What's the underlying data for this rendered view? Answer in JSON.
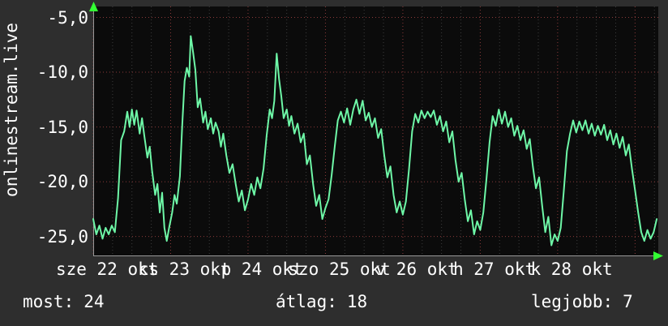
{
  "watermark": "onlinestream.live",
  "stats": {
    "now": {
      "label": "most:",
      "value": "24"
    },
    "avg": {
      "label": "átlag:",
      "value": "18"
    },
    "best": {
      "label": "legjobb:",
      "value": "7"
    }
  },
  "colors": {
    "line": "#6ef7a7",
    "arrow": "#33ff33",
    "grid_major": "#8b3a3a",
    "grid_minor": "#3d3d3d",
    "axis": "#999999",
    "plot_bg": "#0b0b0b",
    "page_bg": "#2e2e2e",
    "text": "#ffffff"
  },
  "y_axis": {
    "ticks": [
      {
        "v": -5,
        "label": "-5,0"
      },
      {
        "v": -10,
        "label": "-10,0"
      },
      {
        "v": -15,
        "label": "-15,0"
      },
      {
        "v": -20,
        "label": "-20,0"
      },
      {
        "v": -25,
        "label": "-25,0"
      }
    ]
  },
  "x_axis": {
    "labels": [
      {
        "pos": 0.18,
        "text": "sze 22 okt"
      },
      {
        "pos": 1.18,
        "text": "cs 23 okt"
      },
      {
        "pos": 2.18,
        "text": "p 24 okt"
      },
      {
        "pos": 3.18,
        "text": "szo 25 okt"
      },
      {
        "pos": 4.18,
        "text": "v 26 okt"
      },
      {
        "pos": 5.18,
        "text": "h 27 okt"
      },
      {
        "pos": 6.18,
        "text": "k 28 okt"
      }
    ],
    "major": [
      0,
      1,
      2,
      3,
      4,
      5,
      6,
      7
    ],
    "minor_step": 0.25
  },
  "chart_data": {
    "type": "line",
    "title": "onlinestream.live",
    "xlabel": "",
    "ylabel": "",
    "x_tick_labels": [
      "sze 22 okt",
      "cs 23 okt",
      "p 24 okt",
      "szo 25 okt",
      "v 26 okt",
      "h 27 okt",
      "k 28 okt"
    ],
    "y_tick_labels": [
      "-5,0",
      "-10,0",
      "-15,0",
      "-20,0",
      "-25,0"
    ],
    "xlim": [
      0,
      7.3
    ],
    "ylim": [
      -26.8,
      -4
    ],
    "grid": "dotted",
    "legend": "none",
    "summary": {
      "most": 24,
      "atlag": 18,
      "legjobb": 7
    },
    "series": [
      {
        "name": "onlinestream.live",
        "color": "#6ef7a7",
        "points": [
          [
            0,
            -23.4
          ],
          [
            0.04,
            -24.8
          ],
          [
            0.08,
            -24
          ],
          [
            0.12,
            -25.2
          ],
          [
            0.16,
            -24.2
          ],
          [
            0.2,
            -24.8
          ],
          [
            0.24,
            -24
          ],
          [
            0.28,
            -24.6
          ],
          [
            0.32,
            -21.5
          ],
          [
            0.36,
            -16.2
          ],
          [
            0.4,
            -15.4
          ],
          [
            0.44,
            -13.6
          ],
          [
            0.47,
            -15
          ],
          [
            0.5,
            -13.4
          ],
          [
            0.53,
            -14.8
          ],
          [
            0.56,
            -13.5
          ],
          [
            0.6,
            -15.6
          ],
          [
            0.63,
            -14.2
          ],
          [
            0.66,
            -15.8
          ],
          [
            0.7,
            -17.8
          ],
          [
            0.73,
            -16.8
          ],
          [
            0.76,
            -19
          ],
          [
            0.8,
            -21.2
          ],
          [
            0.83,
            -20.2
          ],
          [
            0.86,
            -22.8
          ],
          [
            0.89,
            -21
          ],
          [
            0.92,
            -24.2
          ],
          [
            0.95,
            -25.4
          ],
          [
            0.98,
            -24.2
          ],
          [
            1.02,
            -22.8
          ],
          [
            1.05,
            -21.2
          ],
          [
            1.08,
            -22
          ],
          [
            1.12,
            -19.5
          ],
          [
            1.15,
            -14.8
          ],
          [
            1.18,
            -10.8
          ],
          [
            1.21,
            -9.6
          ],
          [
            1.24,
            -10.4
          ],
          [
            1.26,
            -6.7
          ],
          [
            1.29,
            -8.2
          ],
          [
            1.32,
            -9.8
          ],
          [
            1.35,
            -13.2
          ],
          [
            1.38,
            -12.4
          ],
          [
            1.42,
            -14.6
          ],
          [
            1.45,
            -13.6
          ],
          [
            1.48,
            -15.2
          ],
          [
            1.52,
            -14.2
          ],
          [
            1.55,
            -15.6
          ],
          [
            1.58,
            -14.6
          ],
          [
            1.62,
            -15.4
          ],
          [
            1.65,
            -16.8
          ],
          [
            1.68,
            -15.6
          ],
          [
            1.72,
            -17.6
          ],
          [
            1.76,
            -19.2
          ],
          [
            1.8,
            -18.4
          ],
          [
            1.84,
            -20.2
          ],
          [
            1.88,
            -21.8
          ],
          [
            1.92,
            -20.8
          ],
          [
            1.96,
            -22.6
          ],
          [
            2,
            -21.6
          ],
          [
            2.04,
            -20.2
          ],
          [
            2.08,
            -21.2
          ],
          [
            2.12,
            -19.6
          ],
          [
            2.16,
            -20.6
          ],
          [
            2.2,
            -18.8
          ],
          [
            2.24,
            -15.8
          ],
          [
            2.28,
            -13.4
          ],
          [
            2.31,
            -14.2
          ],
          [
            2.34,
            -12.6
          ],
          [
            2.37,
            -8.3
          ],
          [
            2.4,
            -10.6
          ],
          [
            2.43,
            -12.2
          ],
          [
            2.46,
            -14.2
          ],
          [
            2.5,
            -13.4
          ],
          [
            2.53,
            -14.9
          ],
          [
            2.56,
            -14
          ],
          [
            2.6,
            -15.6
          ],
          [
            2.64,
            -14.7
          ],
          [
            2.68,
            -16.4
          ],
          [
            2.72,
            -15.6
          ],
          [
            2.76,
            -18.4
          ],
          [
            2.8,
            -17.6
          ],
          [
            2.84,
            -20.2
          ],
          [
            2.88,
            -22.2
          ],
          [
            2.92,
            -21.2
          ],
          [
            2.96,
            -23.4
          ],
          [
            3,
            -22.4
          ],
          [
            3.04,
            -21.6
          ],
          [
            3.08,
            -19.4
          ],
          [
            3.12,
            -16.8
          ],
          [
            3.16,
            -14.4
          ],
          [
            3.2,
            -13.6
          ],
          [
            3.24,
            -14.6
          ],
          [
            3.28,
            -13.3
          ],
          [
            3.32,
            -14.8
          ],
          [
            3.36,
            -13.4
          ],
          [
            3.4,
            -12.5
          ],
          [
            3.44,
            -13.8
          ],
          [
            3.48,
            -12.6
          ],
          [
            3.52,
            -14.4
          ],
          [
            3.56,
            -13.7
          ],
          [
            3.6,
            -15
          ],
          [
            3.64,
            -14.2
          ],
          [
            3.68,
            -16
          ],
          [
            3.72,
            -15.2
          ],
          [
            3.76,
            -17.6
          ],
          [
            3.8,
            -19.6
          ],
          [
            3.84,
            -18.6
          ],
          [
            3.88,
            -21.2
          ],
          [
            3.92,
            -22.8
          ],
          [
            3.96,
            -21.8
          ],
          [
            4,
            -23
          ],
          [
            4.04,
            -21.8
          ],
          [
            4.08,
            -18.8
          ],
          [
            4.12,
            -15.4
          ],
          [
            4.16,
            -13.8
          ],
          [
            4.2,
            -14.6
          ],
          [
            4.24,
            -13.5
          ],
          [
            4.28,
            -14.2
          ],
          [
            4.32,
            -13.6
          ],
          [
            4.36,
            -14.1
          ],
          [
            4.4,
            -13.5
          ],
          [
            4.44,
            -14.8
          ],
          [
            4.48,
            -14
          ],
          [
            4.52,
            -15.4
          ],
          [
            4.56,
            -14.5
          ],
          [
            4.6,
            -16.4
          ],
          [
            4.64,
            -15.4
          ],
          [
            4.68,
            -18
          ],
          [
            4.72,
            -20
          ],
          [
            4.76,
            -19.2
          ],
          [
            4.8,
            -21.6
          ],
          [
            4.84,
            -23.6
          ],
          [
            4.88,
            -22.6
          ],
          [
            4.92,
            -24.8
          ],
          [
            4.96,
            -23.6
          ],
          [
            5,
            -24.4
          ],
          [
            5.04,
            -22.8
          ],
          [
            5.08,
            -19.8
          ],
          [
            5.12,
            -16.4
          ],
          [
            5.16,
            -14
          ],
          [
            5.2,
            -14.9
          ],
          [
            5.24,
            -13.4
          ],
          [
            5.28,
            -14.7
          ],
          [
            5.32,
            -13.6
          ],
          [
            5.36,
            -15
          ],
          [
            5.4,
            -14.2
          ],
          [
            5.44,
            -15.8
          ],
          [
            5.48,
            -14.9
          ],
          [
            5.52,
            -16.2
          ],
          [
            5.56,
            -15.3
          ],
          [
            5.6,
            -17
          ],
          [
            5.64,
            -16.1
          ],
          [
            5.68,
            -18.6
          ],
          [
            5.72,
            -20.6
          ],
          [
            5.76,
            -19.6
          ],
          [
            5.8,
            -22.2
          ],
          [
            5.84,
            -24.6
          ],
          [
            5.88,
            -23.2
          ],
          [
            5.92,
            -25.8
          ],
          [
            5.96,
            -24.8
          ],
          [
            6,
            -25.4
          ],
          [
            6.04,
            -24.2
          ],
          [
            6.08,
            -20.8
          ],
          [
            6.12,
            -17.2
          ],
          [
            6.16,
            -15.6
          ],
          [
            6.2,
            -14.4
          ],
          [
            6.24,
            -15.5
          ],
          [
            6.28,
            -14.5
          ],
          [
            6.32,
            -15.3
          ],
          [
            6.36,
            -14.4
          ],
          [
            6.4,
            -15.6
          ],
          [
            6.44,
            -14.7
          ],
          [
            6.48,
            -15.8
          ],
          [
            6.52,
            -14.9
          ],
          [
            6.56,
            -15.7
          ],
          [
            6.6,
            -14.8
          ],
          [
            6.64,
            -16.2
          ],
          [
            6.68,
            -15.3
          ],
          [
            6.72,
            -16.6
          ],
          [
            6.76,
            -15.6
          ],
          [
            6.8,
            -16.9
          ],
          [
            6.84,
            -15.9
          ],
          [
            6.88,
            -17.6
          ],
          [
            6.92,
            -16.6
          ],
          [
            6.96,
            -18.8
          ],
          [
            7,
            -20.8
          ],
          [
            7.04,
            -22.8
          ],
          [
            7.08,
            -24.6
          ],
          [
            7.12,
            -25.4
          ],
          [
            7.16,
            -24.4
          ],
          [
            7.2,
            -25.2
          ],
          [
            7.24,
            -24.6
          ],
          [
            7.28,
            -23.4
          ]
        ]
      }
    ]
  }
}
